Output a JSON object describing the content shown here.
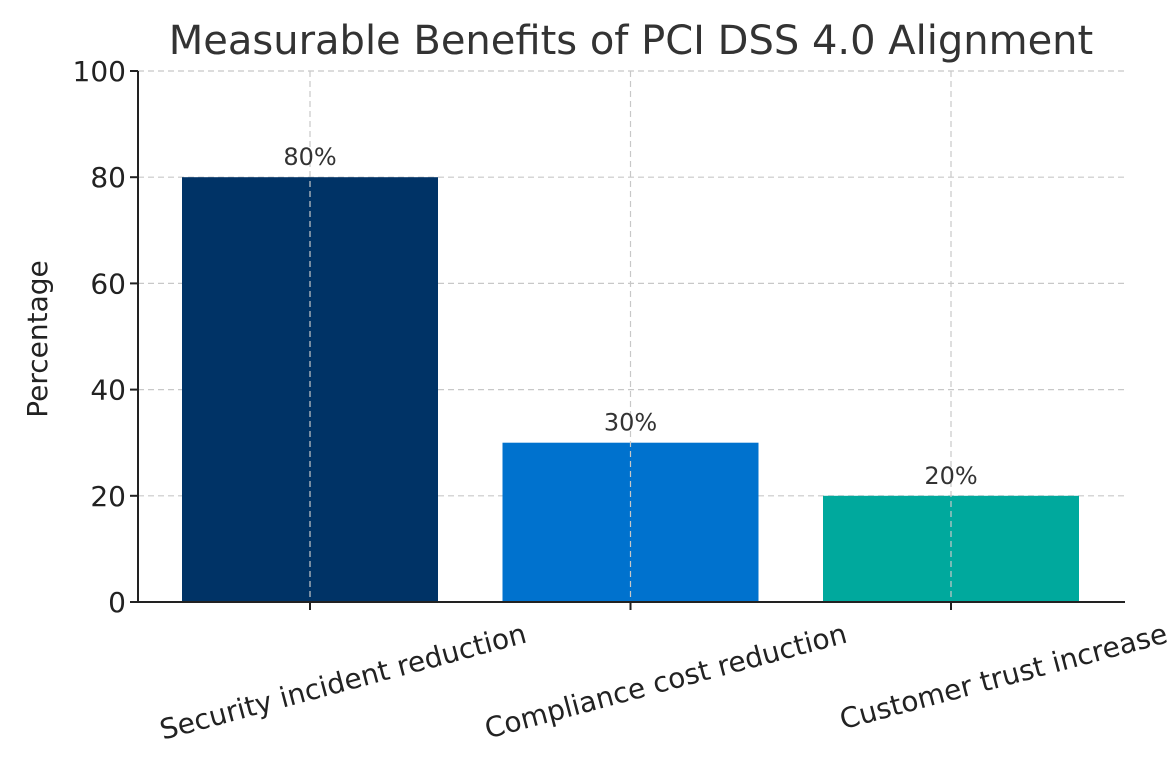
{
  "chart_data": {
    "type": "bar",
    "title": "Measurable Benefits of PCI DSS 4.0 Alignment",
    "xlabel": "",
    "ylabel": "Percentage",
    "categories": [
      "Security incident reduction",
      "Compliance cost reduction",
      "Customer trust increase"
    ],
    "values": [
      80,
      30,
      20
    ],
    "value_labels": [
      "80%",
      "30%",
      "20%"
    ],
    "colors": [
      "#003366",
      "#0072CE",
      "#00A99D"
    ],
    "ylim": [
      0,
      100
    ],
    "yticks": [
      0,
      20,
      40,
      60,
      80,
      100
    ],
    "grid": true
  }
}
